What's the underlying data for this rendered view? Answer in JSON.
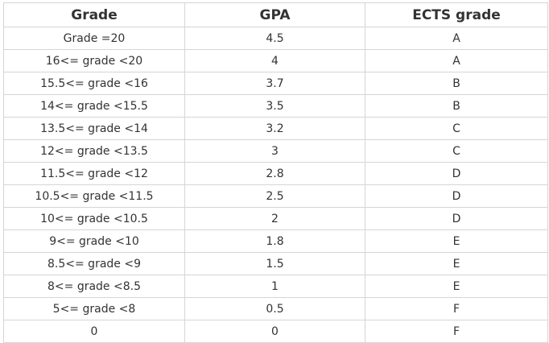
{
  "table": {
    "headers": [
      "Grade",
      "GPA",
      "ECTS grade"
    ],
    "rows": [
      [
        "Grade =20",
        "4.5",
        "A"
      ],
      [
        "16<= grade <20",
        "4",
        "A"
      ],
      [
        "15.5<= grade <16",
        "3.7",
        "B"
      ],
      [
        "14<= grade <15.5",
        "3.5",
        "B"
      ],
      [
        "13.5<= grade <14",
        "3.2",
        "C"
      ],
      [
        "12<= grade <13.5",
        "3",
        "C"
      ],
      [
        "11.5<= grade <12",
        "2.8",
        "D"
      ],
      [
        "10.5<= grade <11.5",
        "2.5",
        "D"
      ],
      [
        "10<= grade <10.5",
        "2",
        "D"
      ],
      [
        "9<= grade <10",
        "1.8",
        "E"
      ],
      [
        "8.5<= grade <9",
        "1.5",
        "E"
      ],
      [
        "8<= grade <8.5",
        "1",
        "E"
      ],
      [
        "5<= grade <8",
        "0.5",
        "F"
      ],
      [
        "0",
        "0",
        "F"
      ]
    ]
  }
}
